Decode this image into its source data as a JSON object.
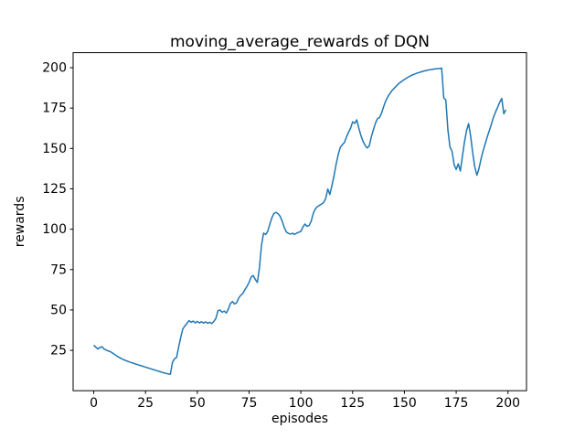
{
  "figure": {
    "title": "moving_average_rewards of DQN",
    "xlabel": "episodes",
    "ylabel": "rewards"
  },
  "chart_data": {
    "type": "line",
    "title": "moving_average_rewards of DQN",
    "xlabel": "episodes",
    "ylabel": "rewards",
    "grid": false,
    "legend": null,
    "xlim": [
      -9.95,
      208.95
    ],
    "ylim": [
      0,
      209.3
    ],
    "xticks": [
      0,
      25,
      50,
      75,
      100,
      125,
      150,
      175,
      200
    ],
    "yticks": [
      25,
      50,
      75,
      100,
      125,
      150,
      175,
      200
    ],
    "series": [
      {
        "name": "moving_average_rewards",
        "color": "#1f77b4",
        "line_width": 1.5,
        "x": {
          "start": 0,
          "step": 1
        },
        "y": [
          28.2,
          27.0,
          25.8,
          26.8,
          27.2,
          25.8,
          25.2,
          24.6,
          24.2,
          23.4,
          22.5,
          21.6,
          20.8,
          20.1,
          19.5,
          18.9,
          18.4,
          17.9,
          17.5,
          17.1,
          16.6,
          16.2,
          15.8,
          15.4,
          15.0,
          14.6,
          14.2,
          13.8,
          13.4,
          13.0,
          12.6,
          12.2,
          11.8,
          11.4,
          11.0,
          10.7,
          10.4,
          10.2,
          17.5,
          19.8,
          20.6,
          27.0,
          33.0,
          38.2,
          40.1,
          41.6,
          43.4,
          42.4,
          43.1,
          42.0,
          42.9,
          42.0,
          42.7,
          41.9,
          42.6,
          41.8,
          42.4,
          41.6,
          42.9,
          44.8,
          49.6,
          49.9,
          48.6,
          49.3,
          48.1,
          50.6,
          54.0,
          55.2,
          53.7,
          54.5,
          57.4,
          59.1,
          60.2,
          62.6,
          64.6,
          67.1,
          70.4,
          71.3,
          68.9,
          67.0,
          76.0,
          90.0,
          97.6,
          96.7,
          98.6,
          103.0,
          107.0,
          109.8,
          110.4,
          109.6,
          108.0,
          105.0,
          101.0,
          98.3,
          97.4,
          97.0,
          97.5,
          96.8,
          97.6,
          98.1,
          98.6,
          101.4,
          103.2,
          101.8,
          102.3,
          105.0,
          109.8,
          112.6,
          114.0,
          114.8,
          115.6,
          116.5,
          119.0,
          124.9,
          121.5,
          127.0,
          133.0,
          140.0,
          146.0,
          150.5,
          152.3,
          153.6,
          157.0,
          160.0,
          162.5,
          166.5,
          165.5,
          167.7,
          162.5,
          158.0,
          154.5,
          152.0,
          150.3,
          151.5,
          157.0,
          161.5,
          165.5,
          168.5,
          169.2,
          172.0,
          176.0,
          179.5,
          182.0,
          184.0,
          185.8,
          187.2,
          188.5,
          189.9,
          190.9,
          191.8,
          192.7,
          193.5,
          194.3,
          195.0,
          195.6,
          196.1,
          196.6,
          197.0,
          197.4,
          197.8,
          198.1,
          198.4,
          198.7,
          198.9,
          199.1,
          199.3,
          199.4,
          199.5,
          199.7,
          181.3,
          180.0,
          161.5,
          150.8,
          148.3,
          140.0,
          137.0,
          140.5,
          136.0,
          145.0,
          154.0,
          161.0,
          165.4,
          157.5,
          147.0,
          138.5,
          133.4,
          137.5,
          143.5,
          148.5,
          152.8,
          157.2,
          161.0,
          165.0,
          169.3,
          172.5,
          175.5,
          178.5,
          181.0,
          171.5,
          174.0
        ]
      }
    ]
  }
}
